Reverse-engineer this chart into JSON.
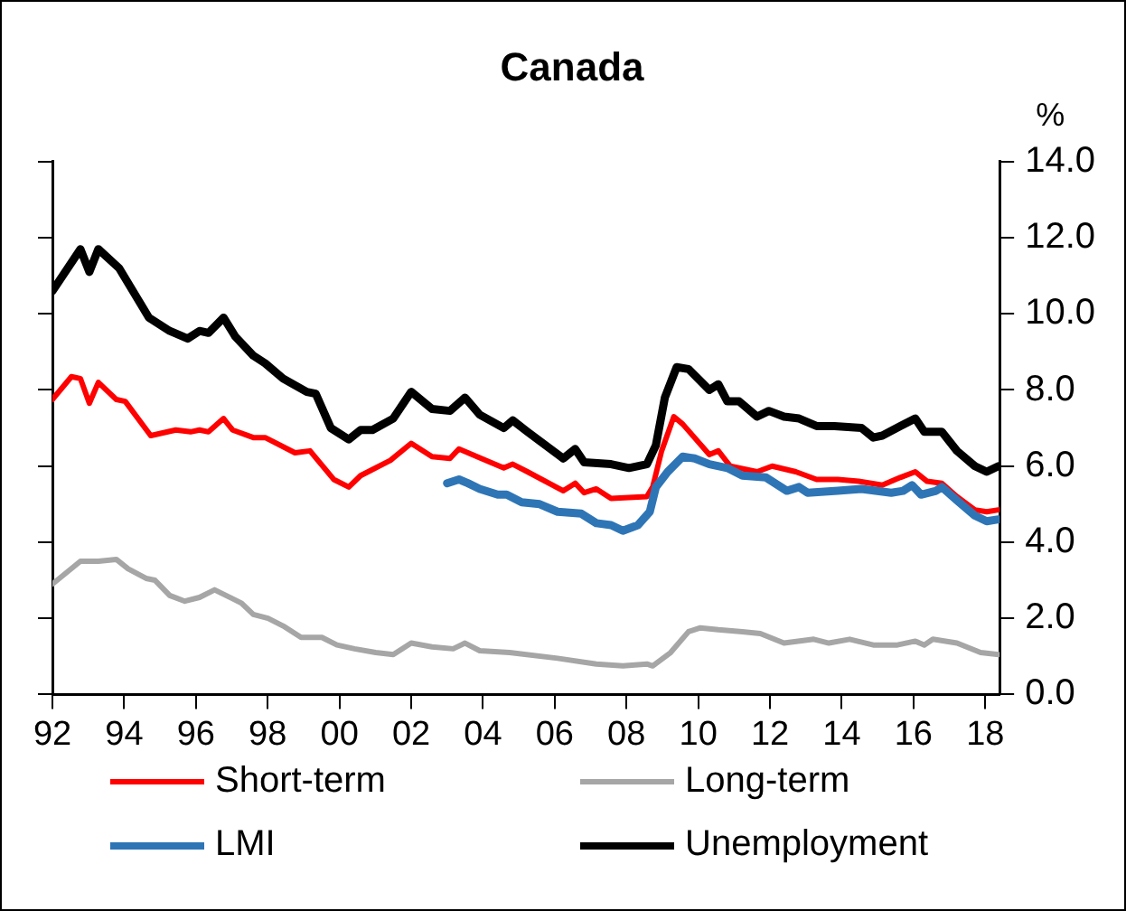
{
  "chart_data": {
    "type": "line",
    "title": "Canada",
    "ylabel": "%",
    "xlim": [
      1992,
      2018.4
    ],
    "xticks": [
      {
        "value": 1992,
        "label": "92"
      },
      {
        "value": 1994,
        "label": "94"
      },
      {
        "value": 1996,
        "label": "96"
      },
      {
        "value": 1998,
        "label": "98"
      },
      {
        "value": 2000,
        "label": "00"
      },
      {
        "value": 2002,
        "label": "02"
      },
      {
        "value": 2004,
        "label": "04"
      },
      {
        "value": 2006,
        "label": "06"
      },
      {
        "value": 2008,
        "label": "08"
      },
      {
        "value": 2010,
        "label": "10"
      },
      {
        "value": 2012,
        "label": "12"
      },
      {
        "value": 2014,
        "label": "14"
      },
      {
        "value": 2016,
        "label": "16"
      },
      {
        "value": 2018,
        "label": "18"
      }
    ],
    "ylim": [
      0,
      14
    ],
    "yticks": [
      {
        "value": 0,
        "label": "0.0"
      },
      {
        "value": 2,
        "label": "2.0"
      },
      {
        "value": 4,
        "label": "4.0"
      },
      {
        "value": 6,
        "label": "6.0"
      },
      {
        "value": 8,
        "label": "8.0"
      },
      {
        "value": 10,
        "label": "10.0"
      },
      {
        "value": 12,
        "label": "12.0"
      },
      {
        "value": 14,
        "label": "14.0"
      }
    ],
    "grid": false,
    "legend": "bottom",
    "marker": "none",
    "line_style": "solid",
    "series": [
      {
        "name": "Short-term",
        "color": "#ff0000",
        "x": [
          1992.0,
          1992.53,
          1992.78,
          1993.03,
          1993.28,
          1993.78,
          1994.03,
          1994.74,
          1995.44,
          1995.85,
          1996.1,
          1996.35,
          1996.77,
          1997.02,
          1997.6,
          1997.93,
          1998.76,
          1999.18,
          1999.84,
          2000.26,
          2000.59,
          2001.42,
          2002.0,
          2002.58,
          2003.08,
          2003.33,
          2004.58,
          2004.83,
          2005.24,
          2006.24,
          2006.57,
          2006.82,
          2007.16,
          2007.57,
          2008.57,
          2008.73,
          2008.98,
          2009.32,
          2009.57,
          2010.31,
          2010.56,
          2010.89,
          2011.64,
          2012.06,
          2012.72,
          2013.3,
          2013.89,
          2014.47,
          2015.13,
          2015.63,
          2016.05,
          2016.38,
          2016.79,
          2017.21,
          2017.71,
          2018.04,
          2018.37
        ],
        "values": [
          7.75,
          8.35,
          8.3,
          7.65,
          8.2,
          7.75,
          7.7,
          6.8,
          6.95,
          6.9,
          6.95,
          6.9,
          7.25,
          6.95,
          6.75,
          6.75,
          6.35,
          6.4,
          5.65,
          5.45,
          5.75,
          6.15,
          6.6,
          6.25,
          6.2,
          6.45,
          5.95,
          6.05,
          5.85,
          5.35,
          5.55,
          5.3,
          5.4,
          5.15,
          5.2,
          5.45,
          6.4,
          7.3,
          7.1,
          6.3,
          6.4,
          6.0,
          5.85,
          6.0,
          5.85,
          5.65,
          5.65,
          5.6,
          5.5,
          5.7,
          5.85,
          5.6,
          5.55,
          5.2,
          4.85,
          4.8,
          4.85
        ]
      },
      {
        "name": "Long-term",
        "color": "#a6a6a6",
        "x": [
          1992.0,
          1992.78,
          1993.28,
          1993.78,
          1994.11,
          1994.61,
          1994.86,
          1995.27,
          1995.69,
          1996.1,
          1996.52,
          1997.27,
          1997.6,
          1998.01,
          1998.43,
          1998.93,
          1999.51,
          1999.93,
          2000.42,
          2001.01,
          2001.5,
          2002.0,
          2002.58,
          2003.17,
          2003.5,
          2003.91,
          2004.74,
          2006.08,
          2007.16,
          2007.9,
          2008.57,
          2008.73,
          2009.23,
          2009.73,
          2010.06,
          2010.56,
          2011.23,
          2011.73,
          2012.39,
          2013.22,
          2013.64,
          2014.22,
          2014.88,
          2015.55,
          2016.05,
          2016.3,
          2016.54,
          2017.21,
          2017.87,
          2018.37
        ],
        "values": [
          2.9,
          3.5,
          3.5,
          3.55,
          3.3,
          3.05,
          3.0,
          2.6,
          2.45,
          2.55,
          2.75,
          2.4,
          2.1,
          2.0,
          1.8,
          1.5,
          1.5,
          1.3,
          1.2,
          1.1,
          1.05,
          1.35,
          1.25,
          1.2,
          1.35,
          1.15,
          1.1,
          0.95,
          0.8,
          0.75,
          0.8,
          0.75,
          1.1,
          1.65,
          1.75,
          1.7,
          1.65,
          1.6,
          1.35,
          1.45,
          1.35,
          1.45,
          1.3,
          1.3,
          1.4,
          1.3,
          1.45,
          1.35,
          1.1,
          1.05
        ]
      },
      {
        "name": "LMI",
        "color": "#2e75b6",
        "x": [
          2003.0,
          2003.33,
          2003.58,
          2003.91,
          2004.41,
          2004.66,
          2005.08,
          2005.58,
          2006.08,
          2006.74,
          2007.16,
          2007.57,
          2007.9,
          2008.32,
          2008.65,
          2008.82,
          2009.15,
          2009.57,
          2009.9,
          2010.31,
          2010.81,
          2011.23,
          2011.89,
          2012.47,
          2012.81,
          2013.05,
          2013.89,
          2014.55,
          2015.38,
          2015.71,
          2015.96,
          2016.21,
          2016.63,
          2016.79,
          2017.21,
          2017.71,
          2018.04,
          2018.37
        ],
        "values": [
          5.55,
          5.65,
          5.55,
          5.4,
          5.25,
          5.25,
          5.05,
          5.0,
          4.8,
          4.75,
          4.5,
          4.45,
          4.3,
          4.45,
          4.8,
          5.45,
          5.85,
          6.25,
          6.2,
          6.05,
          5.95,
          5.75,
          5.7,
          5.35,
          5.45,
          5.3,
          5.35,
          5.4,
          5.3,
          5.35,
          5.5,
          5.25,
          5.35,
          5.45,
          5.1,
          4.7,
          4.55,
          4.6
        ]
      },
      {
        "name": "Unemployment",
        "color": "#000000",
        "x": [
          1992.0,
          1992.78,
          1993.03,
          1993.28,
          1993.86,
          1994.69,
          1995.27,
          1995.77,
          1996.1,
          1996.35,
          1996.77,
          1997.1,
          1997.6,
          1997.93,
          1998.43,
          1999.09,
          1999.34,
          1999.76,
          2000.26,
          2000.59,
          2000.92,
          2001.5,
          2002.0,
          2002.58,
          2003.08,
          2003.5,
          2003.91,
          2004.58,
          2004.83,
          2005.24,
          2006.24,
          2006.57,
          2006.82,
          2007.57,
          2008.07,
          2008.57,
          2008.82,
          2009.07,
          2009.4,
          2009.73,
          2010.31,
          2010.56,
          2010.81,
          2011.14,
          2011.64,
          2011.97,
          2012.39,
          2012.81,
          2013.3,
          2013.8,
          2014.55,
          2014.88,
          2015.13,
          2015.63,
          2016.05,
          2016.3,
          2016.79,
          2017.21,
          2017.71,
          2018.04,
          2018.37
        ],
        "values": [
          10.6,
          11.7,
          11.1,
          11.7,
          11.2,
          9.9,
          9.55,
          9.35,
          9.55,
          9.5,
          9.9,
          9.4,
          8.9,
          8.7,
          8.3,
          7.95,
          7.9,
          7.0,
          6.7,
          6.95,
          6.95,
          7.25,
          7.95,
          7.5,
          7.45,
          7.8,
          7.35,
          7.0,
          7.2,
          6.9,
          6.2,
          6.45,
          6.1,
          6.05,
          5.95,
          6.05,
          6.55,
          7.8,
          8.6,
          8.55,
          8.0,
          8.15,
          7.7,
          7.7,
          7.3,
          7.45,
          7.3,
          7.25,
          7.05,
          7.05,
          7.0,
          6.75,
          6.8,
          7.05,
          7.25,
          6.9,
          6.9,
          6.4,
          6.0,
          5.85,
          6.0
        ]
      }
    ]
  }
}
